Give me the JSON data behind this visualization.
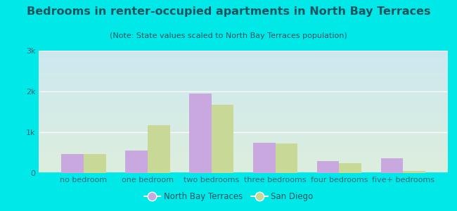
{
  "title": "Bedrooms in renter-occupied apartments in North Bay Terraces",
  "subtitle": "(Note: State values scaled to North Bay Terraces population)",
  "categories": [
    "no bedroom",
    "one bedroom",
    "two bedrooms",
    "three bedrooms",
    "four bedrooms",
    "five+ bedrooms"
  ],
  "north_bay_values": [
    470,
    560,
    1950,
    740,
    300,
    370
  ],
  "san_diego_values": [
    460,
    1170,
    1680,
    730,
    240,
    55
  ],
  "north_bay_color": "#c9a8e0",
  "san_diego_color": "#c8d896",
  "background_outer": "#00e8e8",
  "background_plot_top": "#cce8f0",
  "background_plot_bottom": "#ddeedd",
  "ylim": [
    0,
    3000
  ],
  "yticks": [
    0,
    1000,
    2000,
    3000
  ],
  "ytick_labels": [
    "0",
    "1k",
    "2k",
    "3k"
  ],
  "bar_width": 0.35,
  "legend_north_bay": "North Bay Terraces",
  "legend_san_diego": "San Diego",
  "title_fontsize": 11.5,
  "subtitle_fontsize": 8,
  "axis_fontsize": 8,
  "tick_fontsize": 8,
  "text_color": "#1a5560",
  "tick_color": "#336677"
}
